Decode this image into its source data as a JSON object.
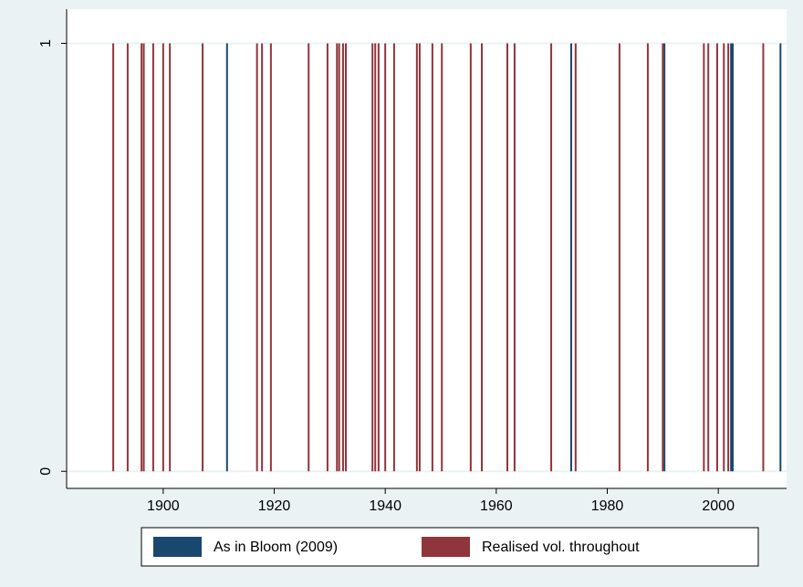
{
  "chart_data": {
    "type": "spike",
    "series": [
      {
        "name": "As in Bloom (2009)",
        "color": "#1a476f",
        "x": [
          1911.5,
          1973.5,
          1990.3,
          2002.3,
          2002.6,
          2011.2
        ],
        "values": [
          1,
          1,
          1,
          1,
          1,
          1
        ]
      },
      {
        "name": "Realised vol. throughout",
        "color": "#90353b",
        "x": [
          1891.0,
          1893.6,
          1896.1,
          1896.5,
          1898.2,
          1900.0,
          1901.2,
          1907.1,
          1916.9,
          1917.8,
          1919.4,
          1926.2,
          1929.6,
          1931.3,
          1931.7,
          1932.4,
          1932.9,
          1937.7,
          1938.2,
          1938.8,
          1940.0,
          1941.6,
          1945.7,
          1946.2,
          1948.5,
          1950.2,
          1955.4,
          1957.4,
          1962.0,
          1963.3,
          1969.9,
          1974.3,
          1982.2,
          1987.3,
          1990.0,
          1997.4,
          1998.2,
          1999.8,
          2001.0,
          2001.8,
          2008.1
        ],
        "values": [
          1,
          1,
          1,
          1,
          1,
          1,
          1,
          1,
          1,
          1,
          1,
          1,
          1,
          1,
          1,
          1,
          1,
          1,
          1,
          1,
          1,
          1,
          1,
          1,
          1,
          1,
          1,
          1,
          1,
          1,
          1,
          1,
          1,
          1,
          1,
          1,
          1,
          1,
          1,
          1,
          1
        ]
      }
    ],
    "xlim": [
      1882.6,
      2012.3
    ],
    "xticks": [
      1900,
      1920,
      1940,
      1960,
      1980,
      2000
    ],
    "ylim": [
      -0.04,
      1.08
    ],
    "yticks": [
      0,
      1
    ],
    "grid": true
  }
}
